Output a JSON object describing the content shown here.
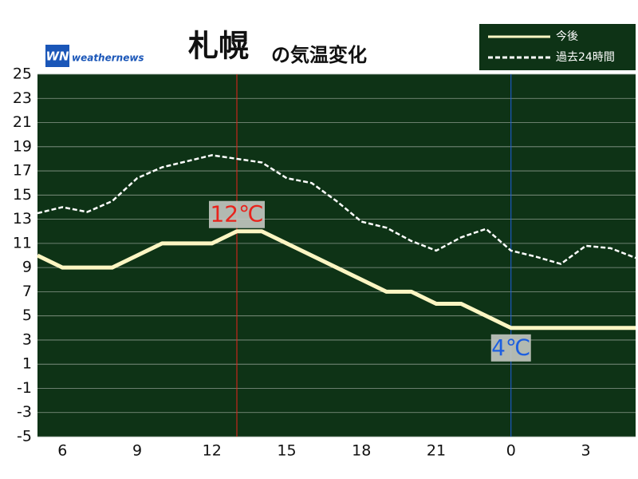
{
  "chart_data": {
    "type": "line",
    "title": "札幌",
    "title_suffix": "の気温変化",
    "logo": {
      "mark": "WN",
      "text": "weathernews"
    },
    "x": [
      5,
      6,
      7,
      8,
      9,
      10,
      11,
      12,
      13,
      14,
      15,
      16,
      17,
      18,
      19,
      20,
      21,
      22,
      23,
      24,
      25,
      26,
      27,
      28,
      29
    ],
    "series": [
      {
        "name": "今後",
        "color": "#fdf6c3",
        "dashed": false,
        "values": [
          10,
          9,
          9,
          9,
          10,
          11,
          11,
          11,
          12,
          12,
          11,
          10,
          9,
          8,
          7,
          7,
          6,
          6,
          5,
          4,
          4,
          4,
          4,
          4,
          4
        ]
      },
      {
        "name": "過去24時間",
        "color": "#ffffff",
        "dashed": true,
        "values": [
          13.5,
          14,
          13.6,
          14.5,
          16.4,
          17.3,
          17.8,
          18.3,
          18,
          17.7,
          16.4,
          16,
          14.5,
          12.8,
          12.3,
          11.2,
          10.4,
          11.5,
          12.2,
          10.4,
          9.9,
          9.3,
          10.8,
          10.6,
          9.8
        ]
      }
    ],
    "xlim": [
      5,
      29
    ],
    "xticks": [
      6,
      9,
      12,
      15,
      18,
      21,
      {
        "value": 24,
        "label": "0"
      },
      {
        "value": 27,
        "label": "3"
      }
    ],
    "ylim": [
      -5,
      25
    ],
    "yticks": [
      25,
      23,
      21,
      19,
      17,
      15,
      13,
      11,
      9,
      7,
      5,
      3,
      1,
      -1,
      -3,
      -5
    ],
    "grid": true,
    "background": "#0e3316",
    "annotations": [
      {
        "text": "12℃",
        "x": 13,
        "y": 12,
        "color": "#e8231c"
      },
      {
        "text": "4℃",
        "x": 24,
        "y": 4,
        "color": "#1d5fe0"
      }
    ]
  }
}
